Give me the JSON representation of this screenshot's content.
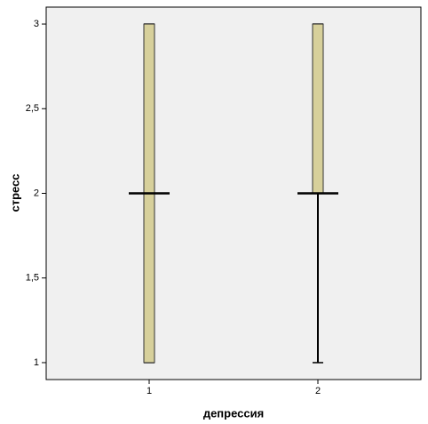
{
  "chart_data": {
    "type": "box",
    "x_label": "депрессия",
    "y_label": "стресс",
    "categories": [
      "1",
      "2"
    ],
    "min": [
      1,
      1
    ],
    "q1": [
      1,
      2
    ],
    "median": [
      2,
      2
    ],
    "q3": [
      3,
      3
    ],
    "max": [
      3,
      3
    ],
    "color": "#d7d09b",
    "ylim": [
      0.9,
      3.1
    ],
    "yticks": [
      1,
      {
        "value": 1.5,
        "label": "1,5"
      },
      2,
      {
        "value": 2.5,
        "label": "2,5"
      },
      3
    ]
  }
}
